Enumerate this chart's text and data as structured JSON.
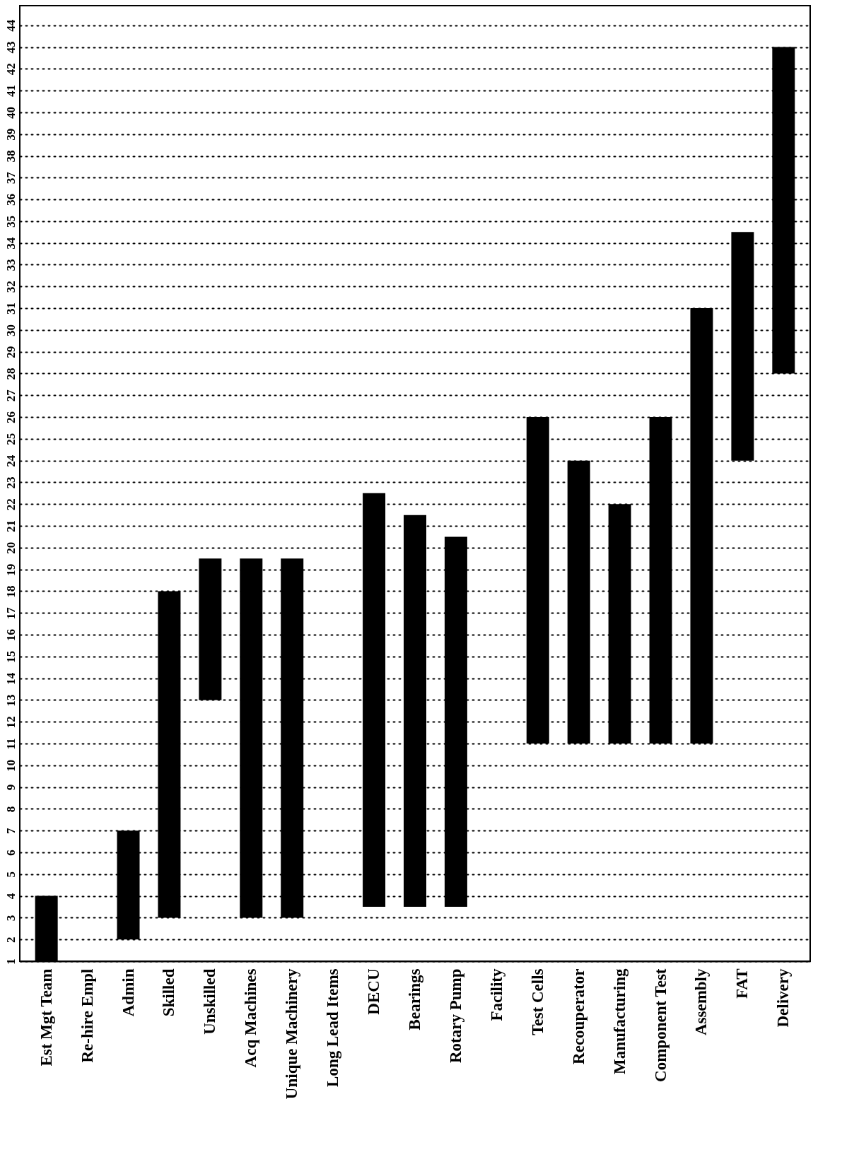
{
  "chart_data": {
    "type": "bar",
    "categories": [
      "Est Mgt Team",
      "Re-hire Empl",
      "Admin",
      "Skilled",
      "Unskilled",
      "Acq Machines",
      "Unique Machinery",
      "Long Lead Items",
      "DECU",
      "Bearings",
      "Rotary Pump",
      "Facility",
      "Test Cells",
      "Recouperator",
      "Manufacturing",
      "Component Test",
      "Assembly",
      "FAT",
      "Delivery"
    ],
    "base": [
      1,
      null,
      2,
      3,
      13,
      3,
      3,
      null,
      3.5,
      3.5,
      3.5,
      null,
      11,
      11,
      11,
      11,
      11,
      24,
      28
    ],
    "values": [
      3,
      null,
      5,
      15,
      6.5,
      16.5,
      16.5,
      null,
      19,
      18,
      17,
      null,
      15,
      13,
      11,
      15,
      20,
      10.5,
      15
    ],
    "color": "#000000",
    "ylim": [
      1,
      44.9
    ],
    "yticks": [
      1,
      2,
      3,
      4,
      5,
      6,
      7,
      8,
      9,
      10,
      11,
      12,
      13,
      14,
      15,
      16,
      17,
      18,
      19,
      20,
      21,
      22,
      23,
      24,
      25,
      26,
      27,
      28,
      29,
      30,
      31,
      32,
      33,
      34,
      35,
      36,
      37,
      38,
      39,
      40,
      41,
      42,
      43,
      44
    ],
    "grid": "y"
  }
}
